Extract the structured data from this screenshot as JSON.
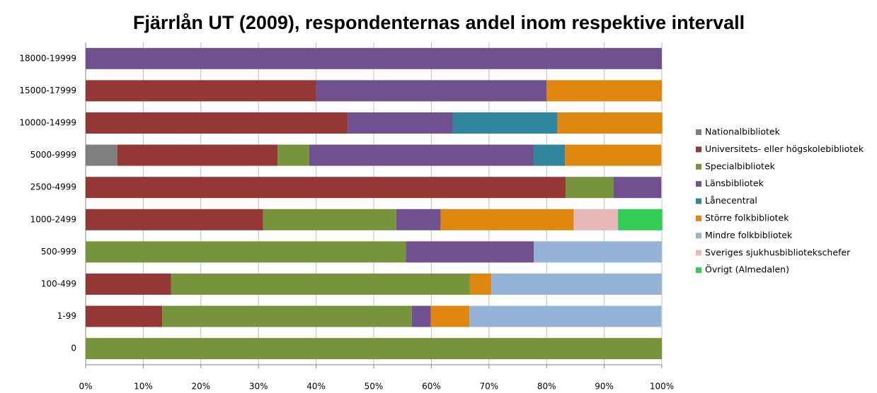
{
  "chart_data": {
    "type": "stacked-bar-horizontal",
    "title": "Fjärrlån UT (2009), respondenternas andel inom respektive intervall",
    "categories": [
      "18000-19999",
      "15000-17999",
      "10000-14999",
      "5000-9999",
      "2500-4999",
      "1000-2499",
      "500-999",
      "100-499",
      "1-99",
      "0"
    ],
    "series": [
      {
        "name": "Nationalbibliotek",
        "color": "#7f7f7f",
        "values": [
          0,
          0,
          0,
          5.5,
          0,
          0,
          0,
          0,
          0,
          0
        ]
      },
      {
        "name": "Universitets- eller högskolebibliotek",
        "color": "#953735",
        "values": [
          0,
          40,
          45.5,
          27.8,
          83.3,
          30.8,
          0,
          14.8,
          13.3,
          0
        ]
      },
      {
        "name": "Specialbibliotek",
        "color": "#77933c",
        "values": [
          0,
          0,
          0,
          5.5,
          8.3,
          23.1,
          55.6,
          51.9,
          43.3,
          100
        ]
      },
      {
        "name": "Länsbibliotek",
        "color": "#6f5190",
        "values": [
          100,
          40,
          18.2,
          38.9,
          8.3,
          7.7,
          22.2,
          0,
          3.3,
          0
        ]
      },
      {
        "name": "Lånecentral",
        "color": "#31859c",
        "values": [
          0,
          0,
          18.2,
          5.5,
          0,
          0,
          0,
          0,
          0,
          0
        ]
      },
      {
        "name": "Större folkbibliotek",
        "color": "#e0870f",
        "values": [
          0,
          20,
          18.2,
          16.7,
          0,
          23.1,
          0,
          3.7,
          6.7,
          0
        ]
      },
      {
        "name": "Mindre folkbibliotek",
        "color": "#95b3d7",
        "values": [
          0,
          0,
          0,
          0,
          0,
          0,
          22.2,
          29.6,
          33.3,
          0
        ]
      },
      {
        "name": "Sveriges sjukhusbibliotekschefer",
        "color": "#e6b9b8",
        "values": [
          0,
          0,
          0,
          0,
          0,
          7.7,
          0,
          0,
          0,
          0
        ]
      },
      {
        "name": "Övrigt (Almedalen)",
        "color": "#33cc55",
        "values": [
          0,
          0,
          0,
          0,
          0,
          7.7,
          0,
          0,
          0,
          0
        ]
      }
    ],
    "xlim": [
      0,
      100
    ],
    "xticks": [
      {
        "value": 0,
        "label": "0%"
      },
      {
        "value": 10,
        "label": "10%"
      },
      {
        "value": 20,
        "label": "20%"
      },
      {
        "value": 30,
        "label": "30%"
      },
      {
        "value": 40,
        "label": "40%"
      },
      {
        "value": 50,
        "label": "50%"
      },
      {
        "value": 60,
        "label": "60%"
      },
      {
        "value": 70,
        "label": "70%"
      },
      {
        "value": 80,
        "label": "80%"
      },
      {
        "value": 90,
        "label": "90%"
      },
      {
        "value": 100,
        "label": "100%"
      }
    ],
    "grid": true,
    "legend": "right"
  }
}
